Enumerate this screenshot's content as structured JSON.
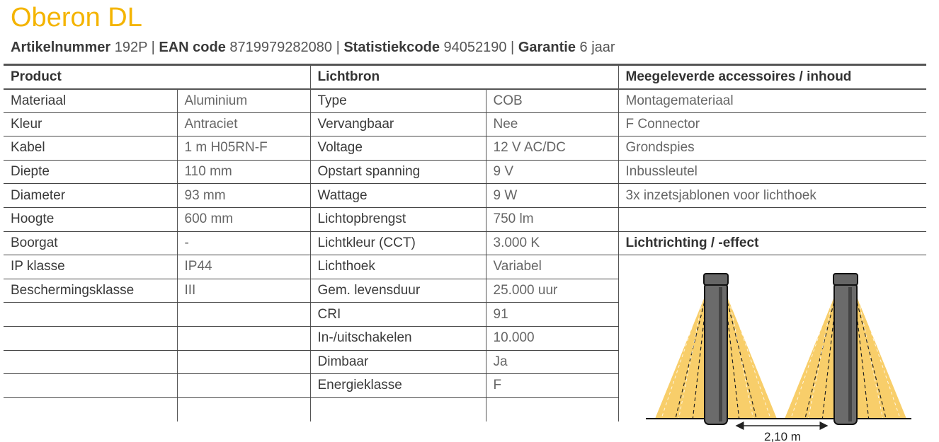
{
  "title": "Oberon DL",
  "meta": [
    {
      "label": "Artikelnummer",
      "value": "192P"
    },
    {
      "label": "EAN code",
      "value": "8719979282080"
    },
    {
      "label": "Statistiekcode",
      "value": "94052190"
    },
    {
      "label": "Garantie",
      "value": "6 jaar"
    }
  ],
  "headers": {
    "product": "Product",
    "lichtbron": "Lichtbron",
    "accessoires": "Meegeleverde accessoires / inhoud"
  },
  "product": [
    [
      "Materiaal",
      "Aluminium"
    ],
    [
      "Kleur",
      "Antraciet"
    ],
    [
      "Kabel",
      "1 m H05RN-F"
    ],
    [
      "Diepte",
      "110 mm"
    ],
    [
      "Diameter",
      "93 mm"
    ],
    [
      "Hoogte",
      "600 mm"
    ],
    [
      "Boorgat",
      "-"
    ],
    [
      "IP klasse",
      "IP44"
    ],
    [
      "Beschermingsklasse",
      "III"
    ]
  ],
  "lichtbron": [
    [
      "Type",
      "COB"
    ],
    [
      "Vervangbaar",
      "Nee"
    ],
    [
      "Voltage",
      "12 V AC/DC"
    ],
    [
      "Opstart spanning",
      "9 V"
    ],
    [
      "Wattage",
      "9 W"
    ],
    [
      "Lichtopbrengst",
      "750 lm"
    ],
    [
      "Lichtkleur (CCT)",
      "3.000 K"
    ],
    [
      "Lichthoek",
      "Variabel"
    ],
    [
      "Gem. levensduur",
      "25.000 uur"
    ],
    [
      "CRI",
      "91"
    ],
    [
      "In-/uitschakelen",
      "10.000"
    ],
    [
      "Dimbaar",
      "Ja"
    ],
    [
      "Energieklasse",
      "F"
    ]
  ],
  "accessoires": [
    "Montagemateriaal",
    "F Connector",
    "Grondspies",
    "Inbussleutel",
    "3x inzetsjablonen voor lichthoek",
    ""
  ],
  "lichtrichting_header": "Lichtrichting / -effect",
  "illustration": {
    "distance_label": "2,10 m",
    "beam_color": "#f7c95a",
    "pole_color": "#6b6b6b"
  },
  "colors": {
    "title": "#f4b400"
  }
}
